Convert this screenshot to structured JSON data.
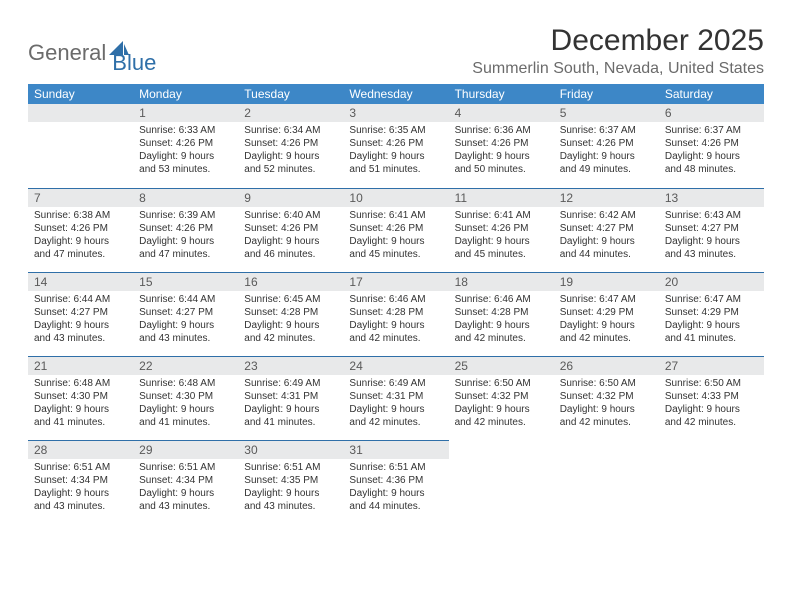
{
  "logo": {
    "part1": "General",
    "part2": "Blue"
  },
  "title": "December 2025",
  "location": "Summerlin South, Nevada, United States",
  "colors": {
    "header_bg": "#3d87c7",
    "header_text": "#ffffff",
    "daybar_bg": "#e8e9ea",
    "daybar_text": "#5a5a5a",
    "rule": "#2f6fa8",
    "body_text": "#333333",
    "logo_gray": "#6b6b6b",
    "logo_blue": "#2f6fa8",
    "page_bg": "#ffffff"
  },
  "fonts": {
    "title_size": 30,
    "location_size": 16,
    "header_size": 12,
    "daynum_size": 12,
    "cell_size": 10
  },
  "day_headers": [
    "Sunday",
    "Monday",
    "Tuesday",
    "Wednesday",
    "Thursday",
    "Friday",
    "Saturday"
  ],
  "weeks": [
    [
      null,
      {
        "n": "1",
        "sr": "Sunrise: 6:33 AM",
        "ss": "Sunset: 4:26 PM",
        "dl": "Daylight: 9 hours and 53 minutes."
      },
      {
        "n": "2",
        "sr": "Sunrise: 6:34 AM",
        "ss": "Sunset: 4:26 PM",
        "dl": "Daylight: 9 hours and 52 minutes."
      },
      {
        "n": "3",
        "sr": "Sunrise: 6:35 AM",
        "ss": "Sunset: 4:26 PM",
        "dl": "Daylight: 9 hours and 51 minutes."
      },
      {
        "n": "4",
        "sr": "Sunrise: 6:36 AM",
        "ss": "Sunset: 4:26 PM",
        "dl": "Daylight: 9 hours and 50 minutes."
      },
      {
        "n": "5",
        "sr": "Sunrise: 6:37 AM",
        "ss": "Sunset: 4:26 PM",
        "dl": "Daylight: 9 hours and 49 minutes."
      },
      {
        "n": "6",
        "sr": "Sunrise: 6:37 AM",
        "ss": "Sunset: 4:26 PM",
        "dl": "Daylight: 9 hours and 48 minutes."
      }
    ],
    [
      {
        "n": "7",
        "sr": "Sunrise: 6:38 AM",
        "ss": "Sunset: 4:26 PM",
        "dl": "Daylight: 9 hours and 47 minutes."
      },
      {
        "n": "8",
        "sr": "Sunrise: 6:39 AM",
        "ss": "Sunset: 4:26 PM",
        "dl": "Daylight: 9 hours and 47 minutes."
      },
      {
        "n": "9",
        "sr": "Sunrise: 6:40 AM",
        "ss": "Sunset: 4:26 PM",
        "dl": "Daylight: 9 hours and 46 minutes."
      },
      {
        "n": "10",
        "sr": "Sunrise: 6:41 AM",
        "ss": "Sunset: 4:26 PM",
        "dl": "Daylight: 9 hours and 45 minutes."
      },
      {
        "n": "11",
        "sr": "Sunrise: 6:41 AM",
        "ss": "Sunset: 4:26 PM",
        "dl": "Daylight: 9 hours and 45 minutes."
      },
      {
        "n": "12",
        "sr": "Sunrise: 6:42 AM",
        "ss": "Sunset: 4:27 PM",
        "dl": "Daylight: 9 hours and 44 minutes."
      },
      {
        "n": "13",
        "sr": "Sunrise: 6:43 AM",
        "ss": "Sunset: 4:27 PM",
        "dl": "Daylight: 9 hours and 43 minutes."
      }
    ],
    [
      {
        "n": "14",
        "sr": "Sunrise: 6:44 AM",
        "ss": "Sunset: 4:27 PM",
        "dl": "Daylight: 9 hours and 43 minutes."
      },
      {
        "n": "15",
        "sr": "Sunrise: 6:44 AM",
        "ss": "Sunset: 4:27 PM",
        "dl": "Daylight: 9 hours and 43 minutes."
      },
      {
        "n": "16",
        "sr": "Sunrise: 6:45 AM",
        "ss": "Sunset: 4:28 PM",
        "dl": "Daylight: 9 hours and 42 minutes."
      },
      {
        "n": "17",
        "sr": "Sunrise: 6:46 AM",
        "ss": "Sunset: 4:28 PM",
        "dl": "Daylight: 9 hours and 42 minutes."
      },
      {
        "n": "18",
        "sr": "Sunrise: 6:46 AM",
        "ss": "Sunset: 4:28 PM",
        "dl": "Daylight: 9 hours and 42 minutes."
      },
      {
        "n": "19",
        "sr": "Sunrise: 6:47 AM",
        "ss": "Sunset: 4:29 PM",
        "dl": "Daylight: 9 hours and 42 minutes."
      },
      {
        "n": "20",
        "sr": "Sunrise: 6:47 AM",
        "ss": "Sunset: 4:29 PM",
        "dl": "Daylight: 9 hours and 41 minutes."
      }
    ],
    [
      {
        "n": "21",
        "sr": "Sunrise: 6:48 AM",
        "ss": "Sunset: 4:30 PM",
        "dl": "Daylight: 9 hours and 41 minutes."
      },
      {
        "n": "22",
        "sr": "Sunrise: 6:48 AM",
        "ss": "Sunset: 4:30 PM",
        "dl": "Daylight: 9 hours and 41 minutes."
      },
      {
        "n": "23",
        "sr": "Sunrise: 6:49 AM",
        "ss": "Sunset: 4:31 PM",
        "dl": "Daylight: 9 hours and 41 minutes."
      },
      {
        "n": "24",
        "sr": "Sunrise: 6:49 AM",
        "ss": "Sunset: 4:31 PM",
        "dl": "Daylight: 9 hours and 42 minutes."
      },
      {
        "n": "25",
        "sr": "Sunrise: 6:50 AM",
        "ss": "Sunset: 4:32 PM",
        "dl": "Daylight: 9 hours and 42 minutes."
      },
      {
        "n": "26",
        "sr": "Sunrise: 6:50 AM",
        "ss": "Sunset: 4:32 PM",
        "dl": "Daylight: 9 hours and 42 minutes."
      },
      {
        "n": "27",
        "sr": "Sunrise: 6:50 AM",
        "ss": "Sunset: 4:33 PM",
        "dl": "Daylight: 9 hours and 42 minutes."
      }
    ],
    [
      {
        "n": "28",
        "sr": "Sunrise: 6:51 AM",
        "ss": "Sunset: 4:34 PM",
        "dl": "Daylight: 9 hours and 43 minutes."
      },
      {
        "n": "29",
        "sr": "Sunrise: 6:51 AM",
        "ss": "Sunset: 4:34 PM",
        "dl": "Daylight: 9 hours and 43 minutes."
      },
      {
        "n": "30",
        "sr": "Sunrise: 6:51 AM",
        "ss": "Sunset: 4:35 PM",
        "dl": "Daylight: 9 hours and 43 minutes."
      },
      {
        "n": "31",
        "sr": "Sunrise: 6:51 AM",
        "ss": "Sunset: 4:36 PM",
        "dl": "Daylight: 9 hours and 44 minutes."
      },
      null,
      null,
      null
    ]
  ]
}
